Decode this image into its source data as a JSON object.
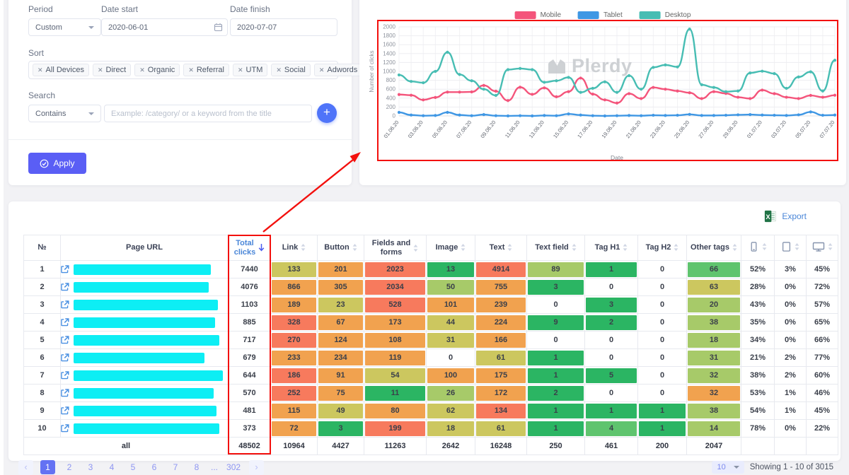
{
  "filters": {
    "period_label": "Period",
    "period_value": "Custom",
    "date_start_label": "Date start",
    "date_start_value": "2020-06-01",
    "date_finish_label": "Date finish",
    "date_finish_value": "2020-07-07",
    "sort_label": "Sort",
    "sort_tags": [
      "All Devices",
      "Direct",
      "Organic",
      "Referral",
      "UTM",
      "Social",
      "Adwords"
    ],
    "search_label": "Search",
    "search_mode": "Contains",
    "search_placeholder": "Example: /category/ or a keyword from the title",
    "apply_label": "Apply"
  },
  "chart_data": {
    "type": "line",
    "title": "",
    "ylabel": "Number of clicks",
    "xlabel": "Date",
    "ylim": [
      0,
      2000
    ],
    "ystep": 200,
    "grid": true,
    "legend_position": "top",
    "watermark": "Plerdy",
    "x_labels": [
      "01.06.20",
      "03.06.20",
      "05.06.20",
      "07.06.20",
      "09.06.20",
      "11.06.20",
      "13.06.20",
      "15.06.20",
      "17.06.20",
      "19.06.20",
      "21.06.20",
      "23.06.20",
      "25.06.20",
      "27.06.20",
      "29.06.20",
      "01.07.20",
      "03.07.20",
      "05.07.20",
      "07.07.20"
    ],
    "series": [
      {
        "name": "Mobile",
        "color": "#f4547b",
        "values": [
          480,
          465,
          360,
          415,
          535,
          535,
          540,
          685,
          555,
          345,
          645,
          485,
          630,
          430,
          545,
          850,
          490,
          360,
          290,
          500,
          390,
          640,
          600,
          560,
          520,
          390,
          545,
          505,
          420,
          390,
          580,
          500,
          420,
          390,
          460,
          420,
          465
        ]
      },
      {
        "name": "Tablet",
        "color": "#3f97e4",
        "values": [
          80,
          20,
          5,
          10,
          80,
          20,
          5,
          30,
          5,
          0,
          5,
          0,
          10,
          5,
          45,
          20,
          5,
          0,
          5,
          10,
          5,
          15,
          10,
          15,
          35,
          10,
          10,
          15,
          25,
          30,
          20,
          15,
          10,
          25,
          90,
          15,
          20
        ]
      },
      {
        "name": "Desktop",
        "color": "#47bdb3",
        "values": [
          920,
          775,
          745,
          1000,
          1430,
          930,
          790,
          600,
          460,
          1040,
          1065,
          1040,
          755,
          790,
          865,
          530,
          620,
          765,
          530,
          905,
          600,
          1090,
          1145,
          1100,
          1950,
          700,
          640,
          545,
          560,
          965,
          1005,
          950,
          620,
          875,
          990,
          560,
          1250
        ]
      }
    ]
  },
  "table": {
    "export_label": "Export",
    "headers": [
      {
        "label": "№",
        "sort": false
      },
      {
        "label": "Page URL",
        "sort": false
      },
      {
        "label": "Total clicks",
        "sort": "active"
      },
      {
        "label": "Link",
        "sort": true
      },
      {
        "label": "Button",
        "sort": true
      },
      {
        "label": "Fields and forms",
        "sort": true
      },
      {
        "label": "Image",
        "sort": true
      },
      {
        "label": "Text",
        "sort": true
      },
      {
        "label": "Text field",
        "sort": true
      },
      {
        "label": "Tag H1",
        "sort": true
      },
      {
        "label": "Tag H2",
        "sort": true
      },
      {
        "label": "Other tags",
        "sort": true
      },
      {
        "icon": "mobile",
        "sort": true
      },
      {
        "icon": "tablet",
        "sort": true
      },
      {
        "icon": "desktop",
        "sort": true
      }
    ],
    "rows": [
      {
        "num": "1",
        "url_w": 90,
        "clicks": "7440",
        "cells": [
          [
            "133",
            "y"
          ],
          [
            "201",
            "o"
          ],
          [
            "2023",
            "r"
          ],
          [
            "13",
            "g3"
          ],
          [
            "4914",
            "r"
          ],
          [
            "89",
            "g1"
          ],
          [
            "1",
            "g3"
          ],
          [
            "0",
            "w"
          ],
          [
            "66",
            "g2"
          ]
        ],
        "pcts": [
          "52%",
          "3%",
          "45%"
        ]
      },
      {
        "num": "2",
        "url_w": 89,
        "clicks": "4076",
        "cells": [
          [
            "866",
            "o"
          ],
          [
            "305",
            "o"
          ],
          [
            "2034",
            "r"
          ],
          [
            "50",
            "g1"
          ],
          [
            "755",
            "o"
          ],
          [
            "3",
            "g3"
          ],
          [
            "0",
            "w"
          ],
          [
            "0",
            "w"
          ],
          [
            "63",
            "y"
          ]
        ],
        "pcts": [
          "28%",
          "0%",
          "72%"
        ]
      },
      {
        "num": "3",
        "url_w": 95,
        "clicks": "1103",
        "cells": [
          [
            "189",
            "o"
          ],
          [
            "23",
            "y"
          ],
          [
            "528",
            "r"
          ],
          [
            "101",
            "o"
          ],
          [
            "239",
            "o"
          ],
          [
            "0",
            "w"
          ],
          [
            "3",
            "g3"
          ],
          [
            "0",
            "w"
          ],
          [
            "20",
            "g1"
          ]
        ],
        "pcts": [
          "43%",
          "0%",
          "57%"
        ]
      },
      {
        "num": "4",
        "url_w": 93,
        "clicks": "885",
        "cells": [
          [
            "328",
            "r"
          ],
          [
            "67",
            "o"
          ],
          [
            "173",
            "o"
          ],
          [
            "44",
            "y"
          ],
          [
            "224",
            "o"
          ],
          [
            "9",
            "g3"
          ],
          [
            "2",
            "g3"
          ],
          [
            "0",
            "w"
          ],
          [
            "38",
            "g1"
          ]
        ],
        "pcts": [
          "35%",
          "0%",
          "65%"
        ]
      },
      {
        "num": "5",
        "url_w": 96,
        "clicks": "717",
        "cells": [
          [
            "270",
            "r"
          ],
          [
            "124",
            "o"
          ],
          [
            "108",
            "o"
          ],
          [
            "31",
            "y"
          ],
          [
            "166",
            "o"
          ],
          [
            "0",
            "w"
          ],
          [
            "0",
            "w"
          ],
          [
            "0",
            "w"
          ],
          [
            "18",
            "g1"
          ]
        ],
        "pcts": [
          "34%",
          "0%",
          "66%"
        ]
      },
      {
        "num": "6",
        "url_w": 86,
        "clicks": "679",
        "cells": [
          [
            "233",
            "o"
          ],
          [
            "234",
            "o"
          ],
          [
            "119",
            "o"
          ],
          [
            "0",
            "w"
          ],
          [
            "61",
            "y"
          ],
          [
            "1",
            "g3"
          ],
          [
            "0",
            "w"
          ],
          [
            "0",
            "w"
          ],
          [
            "31",
            "g1"
          ]
        ],
        "pcts": [
          "21%",
          "2%",
          "77%"
        ]
      },
      {
        "num": "7",
        "url_w": 98,
        "clicks": "644",
        "cells": [
          [
            "186",
            "r"
          ],
          [
            "91",
            "o"
          ],
          [
            "54",
            "y"
          ],
          [
            "100",
            "o"
          ],
          [
            "175",
            "o"
          ],
          [
            "1",
            "g3"
          ],
          [
            "5",
            "g3"
          ],
          [
            "0",
            "w"
          ],
          [
            "32",
            "g1"
          ]
        ],
        "pcts": [
          "38%",
          "2%",
          "60%"
        ]
      },
      {
        "num": "8",
        "url_w": 92,
        "clicks": "570",
        "cells": [
          [
            "252",
            "r"
          ],
          [
            "75",
            "o"
          ],
          [
            "11",
            "g3"
          ],
          [
            "26",
            "g1"
          ],
          [
            "172",
            "o"
          ],
          [
            "2",
            "g3"
          ],
          [
            "0",
            "w"
          ],
          [
            "0",
            "w"
          ],
          [
            "32",
            "o"
          ]
        ],
        "pcts": [
          "53%",
          "1%",
          "46%"
        ]
      },
      {
        "num": "9",
        "url_w": 94,
        "clicks": "481",
        "cells": [
          [
            "115",
            "o"
          ],
          [
            "49",
            "y"
          ],
          [
            "80",
            "o"
          ],
          [
            "62",
            "y"
          ],
          [
            "134",
            "r"
          ],
          [
            "1",
            "g3"
          ],
          [
            "1",
            "g3"
          ],
          [
            "1",
            "g3"
          ],
          [
            "38",
            "g1"
          ]
        ],
        "pcts": [
          "54%",
          "1%",
          "45%"
        ]
      },
      {
        "num": "10",
        "url_w": 96,
        "clicks": "373",
        "cells": [
          [
            "72",
            "o"
          ],
          [
            "3",
            "g3"
          ],
          [
            "199",
            "r"
          ],
          [
            "18",
            "y"
          ],
          [
            "61",
            "y"
          ],
          [
            "1",
            "g3"
          ],
          [
            "4",
            "g2"
          ],
          [
            "1",
            "g3"
          ],
          [
            "14",
            "g1"
          ]
        ],
        "pcts": [
          "78%",
          "0%",
          "22%"
        ]
      }
    ],
    "totals": {
      "label": "all",
      "clicks": "48502",
      "cells": [
        "10964",
        "4427",
        "11263",
        "2642",
        "16248",
        "250",
        "461",
        "200",
        "2047"
      ]
    },
    "pagination": {
      "pages": [
        "1",
        "2",
        "3",
        "4",
        "5",
        "6",
        "7",
        "8",
        "...",
        "302"
      ],
      "active": "1",
      "page_size": "10",
      "showing": "Showing 1 - 10 of 3015"
    }
  }
}
